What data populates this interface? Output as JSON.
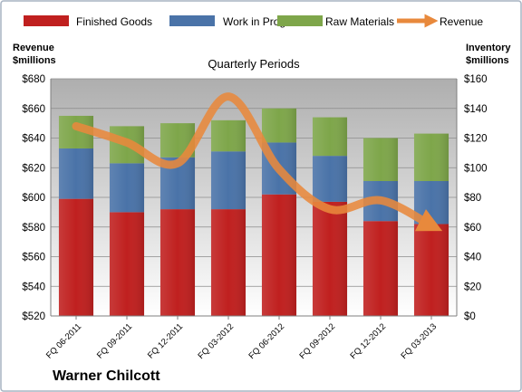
{
  "chart_data": {
    "type": "bar",
    "stacked": true,
    "title": "Quarterly Periods",
    "brand": "Warner Chilcott",
    "y_left": {
      "label_line1": "Revenue",
      "label_line2": "$millions",
      "ylim": [
        520,
        680
      ],
      "ticks": [
        "$520",
        "$540",
        "$560",
        "$580",
        "$600",
        "$620",
        "$640",
        "$660",
        "$680"
      ]
    },
    "y_right": {
      "label_line1": "Inventory",
      "label_line2": "$millions",
      "ylim": [
        0,
        160
      ],
      "ticks": [
        "$0",
        "$20",
        "$40",
        "$60",
        "$80",
        "$100",
        "$120",
        "$140",
        "$160"
      ]
    },
    "categories": [
      "FQ 06-2011",
      "FQ 09-2011",
      "FQ 12-2011",
      "FQ 03-2012",
      "FQ 06-2012",
      "FQ 09-2012",
      "FQ 12-2012",
      "FQ 03-2013"
    ],
    "series": [
      {
        "name": "Finished Goods",
        "axis": "right",
        "color": "#c0201f",
        "values": [
          79,
          70,
          72,
          72,
          82,
          77,
          64,
          62
        ]
      },
      {
        "name": "Work in Progress",
        "axis": "right",
        "color": "#4a73a8",
        "values": [
          34,
          33,
          35,
          39,
          35,
          31,
          27,
          29
        ]
      },
      {
        "name": "Raw Materials",
        "axis": "right",
        "color": "#7ea64a",
        "values": [
          22,
          25,
          23,
          21,
          23,
          26,
          29,
          32
        ]
      },
      {
        "name": "Revenue",
        "axis": "left",
        "type": "line",
        "color": "#e8893c",
        "values": [
          648,
          637,
          623,
          668,
          619,
          592,
          598,
          581
        ]
      }
    ],
    "grid": true,
    "legend": "top"
  }
}
